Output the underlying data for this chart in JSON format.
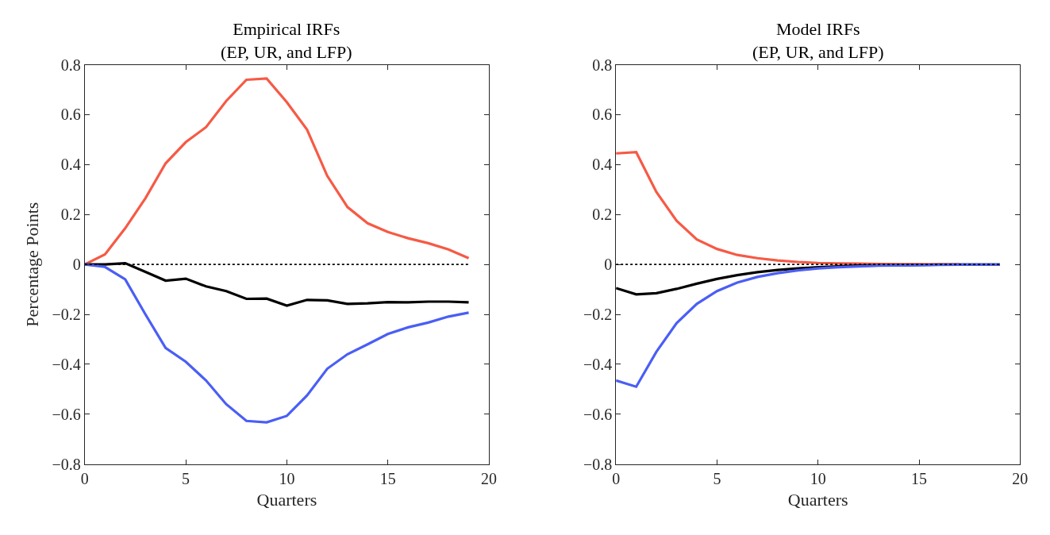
{
  "chart_data": [
    {
      "type": "line",
      "title": "Empirical IRFs\n(EP, UR, and LFP)",
      "xlabel": "Quarters",
      "ylabel": "Percentage Points",
      "x": [
        0,
        1,
        2,
        3,
        4,
        5,
        6,
        7,
        8,
        9,
        10,
        11,
        12,
        13,
        14,
        15,
        16,
        17,
        18,
        19
      ],
      "xlim": [
        0,
        20
      ],
      "xticks": [
        0,
        5,
        10,
        15,
        20
      ],
      "ylim": [
        -0.8,
        0.8
      ],
      "yticks": [
        -0.8,
        -0.6,
        -0.4,
        -0.2,
        0,
        0.2,
        0.4,
        0.6,
        0.8
      ],
      "line_style": "solid",
      "ref_lines": [
        {
          "axis": "y",
          "value": 0,
          "color": "#000000",
          "line_style": "dotted"
        }
      ],
      "series": [
        {
          "color": "#f65a45",
          "values": [
            0,
            0.04,
            0.145,
            0.265,
            0.405,
            0.49,
            0.55,
            0.655,
            0.74,
            0.745,
            0.65,
            0.54,
            0.355,
            0.23,
            0.165,
            0.13,
            0.105,
            0.085,
            0.06,
            0.025
          ]
        },
        {
          "color": "#000000",
          "values": [
            0,
            0,
            0.005,
            -0.03,
            -0.065,
            -0.057,
            -0.088,
            -0.107,
            -0.138,
            -0.137,
            -0.165,
            -0.142,
            -0.144,
            -0.158,
            -0.156,
            -0.151,
            -0.152,
            -0.149,
            -0.149,
            -0.152
          ]
        },
        {
          "color": "#4a5ef5",
          "values": [
            0,
            -0.01,
            -0.06,
            -0.2,
            -0.335,
            -0.39,
            -0.465,
            -0.56,
            -0.627,
            -0.633,
            -0.607,
            -0.525,
            -0.418,
            -0.36,
            -0.32,
            -0.279,
            -0.252,
            -0.233,
            -0.209,
            -0.193
          ]
        }
      ]
    },
    {
      "type": "line",
      "title": "Model IRFs\n(EP, UR, and LFP)",
      "xlabel": "Quarters",
      "x": [
        0,
        1,
        2,
        3,
        4,
        5,
        6,
        7,
        8,
        9,
        10,
        11,
        12,
        13,
        14,
        15,
        16,
        17,
        18,
        19
      ],
      "xlim": [
        0,
        20
      ],
      "xticks": [
        0,
        5,
        10,
        15,
        20
      ],
      "ylim": [
        -0.8,
        0.8
      ],
      "yticks": [
        -0.8,
        -0.6,
        -0.4,
        -0.2,
        0,
        0.2,
        0.4,
        0.6,
        0.8
      ],
      "line_style": "solid",
      "ref_lines": [
        {
          "axis": "y",
          "value": 0,
          "color": "#000000",
          "line_style": "dotted"
        }
      ],
      "series": [
        {
          "color": "#f65a45",
          "values": [
            0.445,
            0.45,
            0.29,
            0.175,
            0.1,
            0.062,
            0.038,
            0.025,
            0.016,
            0.01,
            0.006,
            0.004,
            0.003,
            0.002,
            0.001,
            0.001,
            0,
            0,
            null,
            null
          ]
        },
        {
          "color": "#000000",
          "values": [
            -0.095,
            -0.12,
            -0.115,
            -0.098,
            -0.077,
            -0.058,
            -0.043,
            -0.031,
            -0.022,
            -0.016,
            -0.011,
            -0.008,
            -0.005,
            -0.004,
            -0.003,
            -0.002,
            -0.001,
            -0.001,
            -0.001,
            -0.001
          ]
        },
        {
          "color": "#4a5ef5",
          "values": [
            -0.465,
            -0.49,
            -0.35,
            -0.235,
            -0.158,
            -0.107,
            -0.073,
            -0.05,
            -0.035,
            -0.024,
            -0.016,
            -0.011,
            -0.008,
            -0.005,
            -0.004,
            -0.003,
            -0.002,
            -0.001,
            -0.001,
            -0.001
          ]
        }
      ]
    }
  ]
}
